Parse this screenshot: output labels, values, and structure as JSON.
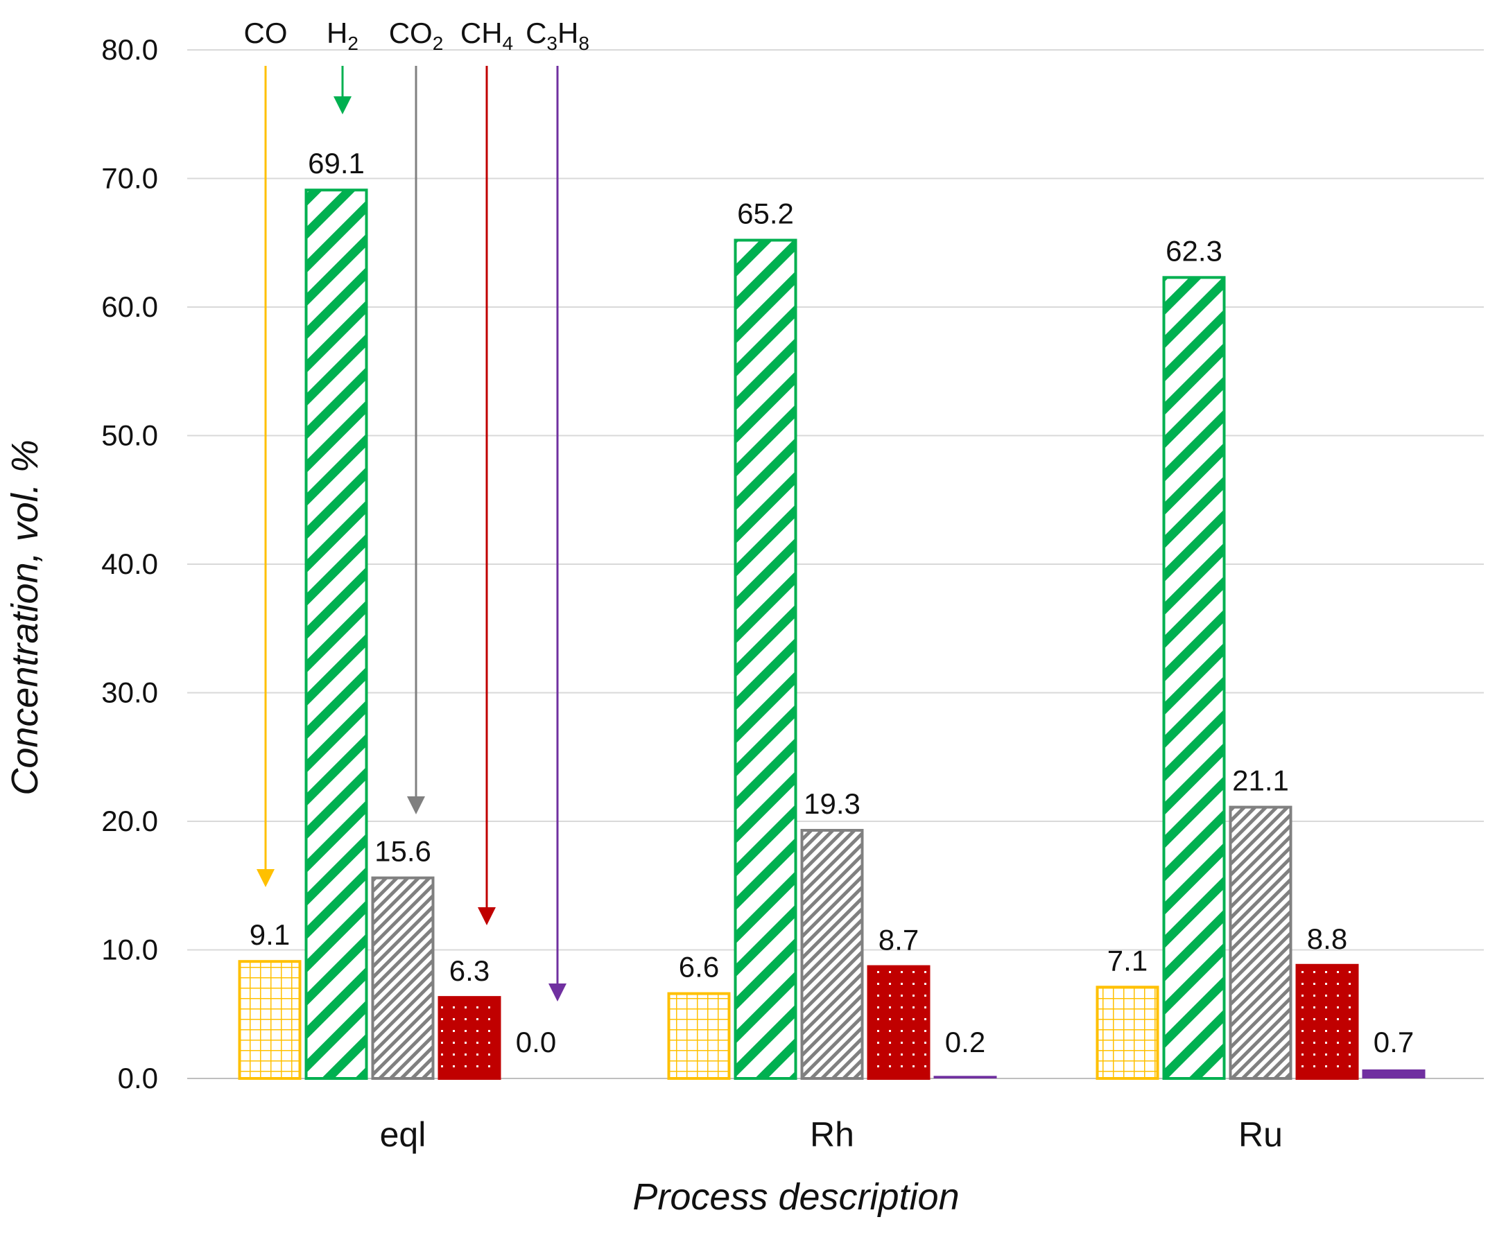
{
  "chart_data": {
    "type": "bar",
    "title": "",
    "xlabel": "Process description",
    "ylabel": "Concentration, vol. %",
    "ylim": [
      0,
      80
    ],
    "yticks": [
      "0.0",
      "10.0",
      "20.0",
      "30.0",
      "40.0",
      "50.0",
      "60.0",
      "70.0",
      "80.0"
    ],
    "categories": [
      "eql",
      "Rh",
      "Ru"
    ],
    "series": [
      {
        "name": "CO",
        "label": {
          "main": "CO",
          "sub": ""
        },
        "color": "#FFC000",
        "pattern": "grid",
        "values": [
          9.1,
          6.6,
          7.1
        ],
        "labels": [
          "9.1",
          "6.6",
          "7.1"
        ]
      },
      {
        "name": "H2",
        "label": {
          "main": "H",
          "sub": "2"
        },
        "color": "#00B050",
        "pattern": "diag",
        "values": [
          69.1,
          65.2,
          62.3
        ],
        "labels": [
          "69.1",
          "65.2",
          "62.3"
        ]
      },
      {
        "name": "CO2",
        "label": {
          "main": "CO",
          "sub": "2"
        },
        "color": "#808080",
        "pattern": "hatch",
        "values": [
          15.6,
          19.3,
          21.1
        ],
        "labels": [
          "15.6",
          "19.3",
          "21.1"
        ]
      },
      {
        "name": "CH4",
        "label": {
          "main": "CH",
          "sub": "4"
        },
        "color": "#C00000",
        "pattern": "dots",
        "values": [
          6.3,
          8.7,
          8.8
        ],
        "labels": [
          "6.3",
          "8.7",
          "8.8"
        ]
      },
      {
        "name": "C3H8",
        "label": {
          "main": "C",
          "sub": "3",
          "main2": "H",
          "sub2": "8"
        },
        "color": "#7030A0",
        "pattern": "solid",
        "values": [
          0.0,
          0.2,
          0.7
        ],
        "labels": [
          "0.0",
          "0.2",
          "0.7"
        ]
      }
    ],
    "grid": true,
    "legend": "top-left arrows"
  }
}
